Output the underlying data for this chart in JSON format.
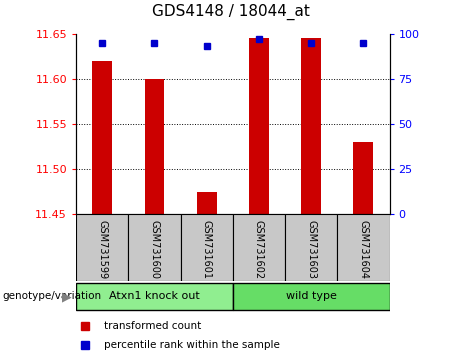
{
  "title": "GDS4148 / 18044_at",
  "samples": [
    "GSM731599",
    "GSM731600",
    "GSM731601",
    "GSM731602",
    "GSM731603",
    "GSM731604"
  ],
  "transformed_counts": [
    11.62,
    11.6,
    11.475,
    11.645,
    11.645,
    11.53
  ],
  "percentile_ranks": [
    95,
    95,
    93,
    97,
    95,
    95
  ],
  "y_min": 11.45,
  "y_max": 11.65,
  "y_ticks": [
    11.45,
    11.5,
    11.55,
    11.6,
    11.65
  ],
  "y2_ticks": [
    0,
    25,
    50,
    75,
    100
  ],
  "groups": [
    {
      "label": "Atxn1 knock out",
      "indices": [
        0,
        1,
        2
      ],
      "color": "#90EE90"
    },
    {
      "label": "wild type",
      "indices": [
        3,
        4,
        5
      ],
      "color": "#66DD66"
    }
  ],
  "bar_color": "#CC0000",
  "marker_color": "#0000CC",
  "bar_bottom": 11.45,
  "tick_area_color": "#C8C8C8",
  "group_label": "genotype/variation",
  "legend_red_label": "transformed count",
  "legend_blue_label": "percentile rank within the sample",
  "grid_lines": [
    11.5,
    11.55,
    11.6
  ],
  "title_fontsize": 11,
  "tick_fontsize": 8,
  "sample_fontsize": 7,
  "group_fontsize": 8
}
